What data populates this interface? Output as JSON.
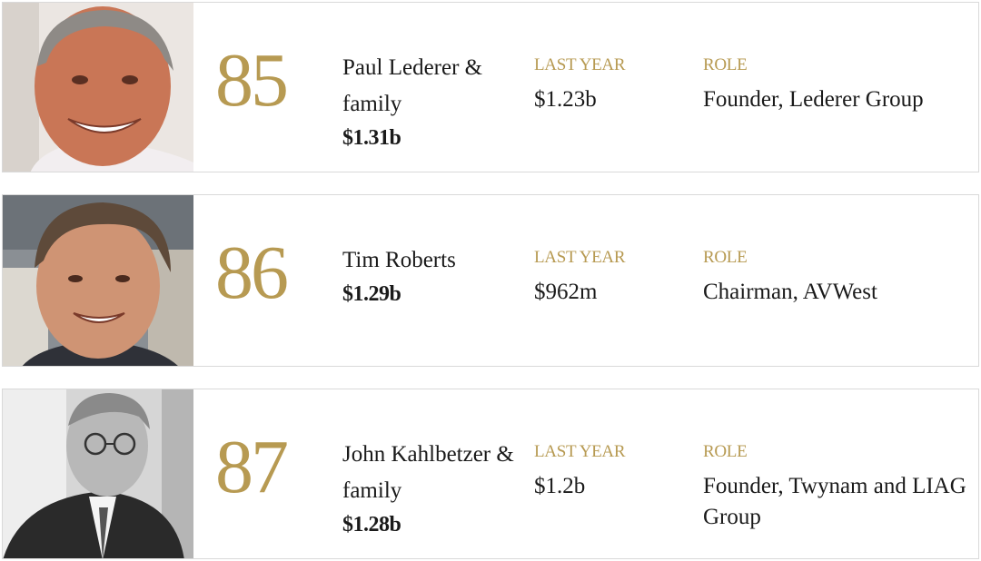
{
  "entries": [
    {
      "rank": "85",
      "name": "Paul Lederer & family",
      "net_worth": "$1.31b",
      "last_year_label": "LAST YEAR",
      "last_year": "$1.23b",
      "role_label": "ROLE",
      "role": "Founder, Lederer Group"
    },
    {
      "rank": "86",
      "name": "Tim Roberts",
      "net_worth": "$1.29b",
      "last_year_label": "LAST YEAR",
      "last_year": "$962m",
      "role_label": "ROLE",
      "role": "Chairman, AVWest"
    },
    {
      "rank": "87",
      "name": "John Kahlbetzer & family",
      "net_worth": "$1.28b",
      "last_year_label": "LAST YEAR",
      "last_year": "$1.2b",
      "role_label": "ROLE",
      "role": "Founder, Twynam and LIAG Group"
    }
  ],
  "colors": {
    "accent_gold": "#b79a52",
    "text": "#1a1a1a",
    "border": "#d9d9d9"
  }
}
